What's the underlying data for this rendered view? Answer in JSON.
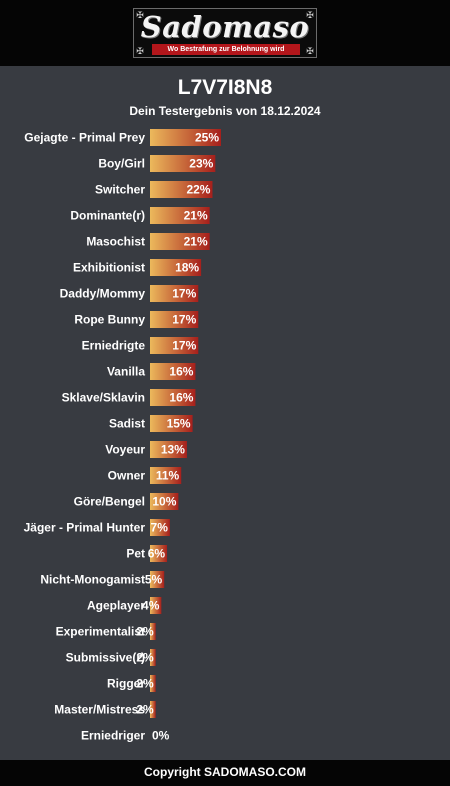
{
  "header": {
    "logo_text": "Sadomaso",
    "tagline": "Wo Bestrafung zur Belohnung wird"
  },
  "result": {
    "title": "L7V7I8N8",
    "subtitle": "Dein Testergebnis von 18.12.2024"
  },
  "colors": {
    "bar_start": "#ecb95c",
    "bar_end": "#a61f1c",
    "background": "#383b41",
    "header_bg": "#050505"
  },
  "chart_data": {
    "type": "bar",
    "orientation": "horizontal",
    "categories": [
      "Gejagte - Primal Prey",
      "Boy/Girl",
      "Switcher",
      "Dominante(r)",
      "Masochist",
      "Exhibitionist",
      "Daddy/Mommy",
      "Rope Bunny",
      "Erniedrigte",
      "Vanilla",
      "Sklave/Sklavin",
      "Sadist",
      "Voyeur",
      "Owner",
      "Göre/Bengel",
      "Jäger - Primal Hunter",
      "Pet",
      "Nicht-Monogamist",
      "Ageplayer",
      "Experimentalist",
      "Submissive(r)",
      "Rigger",
      "Master/Mistress",
      "Erniedriger"
    ],
    "values": [
      25,
      23,
      22,
      21,
      21,
      18,
      17,
      17,
      17,
      16,
      16,
      15,
      13,
      11,
      10,
      7,
      6,
      5,
      4,
      2,
      2,
      2,
      2,
      0
    ],
    "labels": [
      "25%",
      "23%",
      "22%",
      "21%",
      "21%",
      "18%",
      "17%",
      "17%",
      "17%",
      "16%",
      "16%",
      "15%",
      "13%",
      "11%",
      "10%",
      "7%",
      "6%",
      "5%",
      "4%",
      "2%",
      "2%",
      "2%",
      "2%",
      "0%"
    ],
    "unit": "%"
  },
  "footer": {
    "copyright": "Copyright SADOMASO.COM"
  }
}
